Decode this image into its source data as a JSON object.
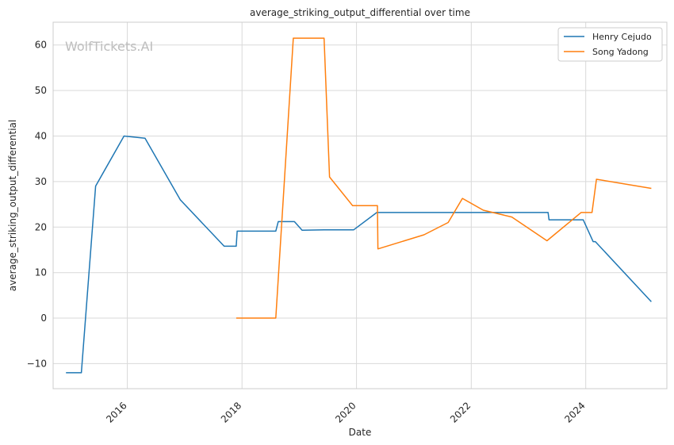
{
  "chart_data": {
    "type": "line",
    "title": "average_striking_output_differential over time",
    "xlabel": "Date",
    "ylabel": "average_striking_output_differential",
    "watermark": "WolfTickets.AI",
    "xlim": [
      "2014-09-15",
      "2025-06-01"
    ],
    "ylim": [
      -15.5,
      65
    ],
    "x_ticks": [
      {
        "date": "2016-01-01",
        "label": "2016"
      },
      {
        "date": "2018-01-01",
        "label": "2018"
      },
      {
        "date": "2020-01-01",
        "label": "2020"
      },
      {
        "date": "2022-01-01",
        "label": "2022"
      },
      {
        "date": "2024-01-01",
        "label": "2024"
      }
    ],
    "y_ticks": [
      -10,
      0,
      10,
      20,
      30,
      40,
      50,
      60
    ],
    "grid": true,
    "legend_position": "top-right",
    "series": [
      {
        "name": "Henry Cejudo",
        "color": "#1f77b4",
        "points": [
          {
            "x": "2014-12-06",
            "y": -12
          },
          {
            "x": "2015-03-14",
            "y": -12
          },
          {
            "x": "2015-06-13",
            "y": 29
          },
          {
            "x": "2015-12-11",
            "y": 40
          },
          {
            "x": "2016-04-23",
            "y": 39.5
          },
          {
            "x": "2016-12-03",
            "y": 26
          },
          {
            "x": "2017-09-09",
            "y": 15.8
          },
          {
            "x": "2017-11-25",
            "y": 15.8
          },
          {
            "x": "2017-12-01",
            "y": 19.1
          },
          {
            "x": "2018-08-04",
            "y": 19.1
          },
          {
            "x": "2018-08-20",
            "y": 21.2
          },
          {
            "x": "2018-12-01",
            "y": 21.2
          },
          {
            "x": "2019-01-19",
            "y": 19.3
          },
          {
            "x": "2019-06-08",
            "y": 19.4
          },
          {
            "x": "2019-12-14",
            "y": 19.4
          },
          {
            "x": "2020-05-09",
            "y": 23.2
          },
          {
            "x": "2023-05-06",
            "y": 23.2
          },
          {
            "x": "2023-05-12",
            "y": 21.6
          },
          {
            "x": "2023-12-16",
            "y": 21.6
          },
          {
            "x": "2024-02-17",
            "y": 16.8
          },
          {
            "x": "2024-03-02",
            "y": 16.8
          },
          {
            "x": "2025-02-22",
            "y": 3.6
          }
        ]
      },
      {
        "name": "Song Yadong",
        "color": "#ff7f0e",
        "points": [
          {
            "x": "2017-11-25",
            "y": 0
          },
          {
            "x": "2018-08-04",
            "y": 0
          },
          {
            "x": "2018-11-24",
            "y": 61.5
          },
          {
            "x": "2019-06-08",
            "y": 61.5
          },
          {
            "x": "2019-07-13",
            "y": 31
          },
          {
            "x": "2019-12-07",
            "y": 24.7
          },
          {
            "x": "2020-05-13",
            "y": 24.7
          },
          {
            "x": "2020-05-16",
            "y": 15.2
          },
          {
            "x": "2021-03-06",
            "y": 18.3
          },
          {
            "x": "2021-08-07",
            "y": 21
          },
          {
            "x": "2021-11-06",
            "y": 26.3
          },
          {
            "x": "2022-03-19",
            "y": 23.7
          },
          {
            "x": "2022-09-17",
            "y": 22.2
          },
          {
            "x": "2023-04-29",
            "y": 17
          },
          {
            "x": "2023-12-02",
            "y": 23.2
          },
          {
            "x": "2024-02-10",
            "y": 23.2
          },
          {
            "x": "2024-03-09",
            "y": 30.5
          },
          {
            "x": "2025-02-22",
            "y": 28.5
          }
        ]
      }
    ]
  }
}
